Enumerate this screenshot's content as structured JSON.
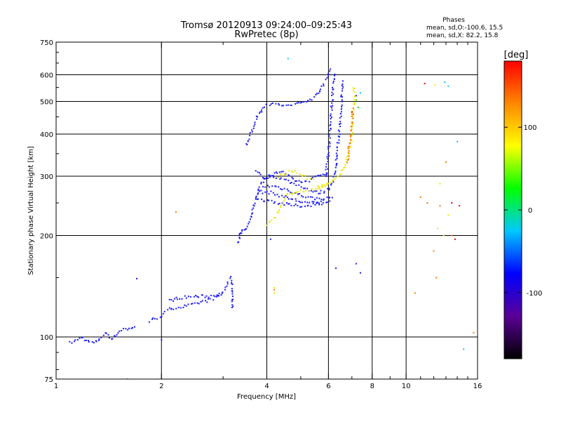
{
  "chart_data": {
    "type": "scatter",
    "title": "Tromsø 20120913 09:24:00–09:25:43",
    "subtitle": "RwPretec (8p)",
    "xlabel": "Frequency [MHz]",
    "ylabel": "Stationary phase Virtual Height [km]",
    "x_scale": "log",
    "y_scale": "log",
    "xlim": [
      1,
      16
    ],
    "ylim": [
      75,
      750
    ],
    "x_ticks": [
      1,
      2,
      4,
      6,
      8,
      10,
      16
    ],
    "x_tick_labels": [
      "1",
      "2",
      "4",
      "6",
      "8",
      "10",
      "16"
    ],
    "x_gridlines": [
      2,
      4,
      6,
      8,
      10
    ],
    "y_ticks": [
      75,
      100,
      200,
      300,
      400,
      500,
      600,
      750
    ],
    "y_tick_labels": [
      "75",
      "100",
      "200",
      "300",
      "400",
      "500",
      "600",
      "750"
    ],
    "y_gridlines": [
      100,
      200,
      300,
      400,
      500,
      600
    ],
    "grid": true,
    "phases_note": {
      "header": "Phases",
      "line1": "mean, sd,O:-100.6, 15.5",
      "line2": "mean, sd,X:  82.2, 15.8"
    },
    "colorbar": {
      "label": "[deg]",
      "range": [
        -180,
        180
      ],
      "ticks": [
        100,
        0,
        -100
      ],
      "tick_labels": [
        "100",
        "0",
        "-100"
      ],
      "colors": [
        "#000000",
        "#5a0096",
        "#0000ff",
        "#00c8ff",
        "#00ff00",
        "#ffff00",
        "#ff8800",
        "#ff0000"
      ]
    },
    "series": [
      {
        "phase": -100,
        "color": "#1a1aff",
        "segments": [
          [
            [
              1.1,
              96
            ],
            [
              1.15,
              98
            ],
            [
              1.18,
              100
            ],
            [
              1.23,
              97
            ],
            [
              1.28,
              96
            ],
            [
              1.32,
              98
            ],
            [
              1.36,
              101
            ],
            [
              1.4,
              103
            ],
            [
              1.42,
              100
            ],
            [
              1.45,
              99
            ],
            [
              1.48,
              101
            ],
            [
              1.52,
              104
            ],
            [
              1.55,
              106
            ],
            [
              1.6,
              105
            ],
            [
              1.65,
              107
            ],
            [
              1.7,
              108
            ]
          ],
          [
            [
              1.85,
              111
            ],
            [
              1.9,
              113
            ],
            [
              1.95,
              114
            ],
            [
              2.0,
              116
            ],
            [
              2.05,
              118
            ],
            [
              2.1,
              121
            ],
            [
              2.15,
              122
            ],
            [
              2.2,
              122
            ],
            [
              2.3,
              123
            ],
            [
              2.4,
              124
            ],
            [
              2.5,
              125
            ],
            [
              2.6,
              127
            ],
            [
              2.7,
              128
            ],
            [
              2.8,
              130
            ],
            [
              2.9,
              133
            ],
            [
              3.0,
              136
            ],
            [
              3.05,
              140
            ],
            [
              3.1,
              146
            ],
            [
              3.15,
              150
            ],
            [
              3.18,
              142
            ],
            [
              3.2,
              120
            ]
          ],
          [
            [
              2.1,
              128
            ],
            [
              2.2,
              130
            ],
            [
              2.3,
              131
            ],
            [
              2.5,
              132
            ],
            [
              2.7,
              132
            ],
            [
              2.9,
              133
            ],
            [
              3.0,
              135
            ]
          ],
          [
            [
              3.35,
              200
            ],
            [
              3.4,
              205
            ],
            [
              3.5,
              210
            ],
            [
              3.6,
              225
            ],
            [
              3.65,
              240
            ],
            [
              3.7,
              255
            ],
            [
              3.75,
              265
            ],
            [
              3.8,
              280
            ],
            [
              3.9,
              290
            ],
            [
              4.0,
              300
            ],
            [
              4.2,
              300
            ],
            [
              4.4,
              295
            ],
            [
              4.6,
              290
            ],
            [
              4.8,
              285
            ],
            [
              5.0,
              280
            ],
            [
              5.2,
              275
            ],
            [
              5.4,
              270
            ],
            [
              5.6,
              268
            ],
            [
              5.8,
              270
            ],
            [
              6.0,
              275
            ],
            [
              6.2,
              290
            ],
            [
              6.3,
              320
            ],
            [
              6.4,
              380
            ],
            [
              6.5,
              450
            ],
            [
              6.55,
              520
            ],
            [
              6.6,
              580
            ]
          ],
          [
            [
              3.9,
              280
            ],
            [
              4.2,
              280
            ],
            [
              4.5,
              275
            ],
            [
              4.8,
              268
            ],
            [
              5.1,
              262
            ],
            [
              5.4,
              258
            ],
            [
              5.7,
              257
            ],
            [
              6.0,
              258
            ],
            [
              6.2,
              262
            ]
          ],
          [
            [
              3.8,
              270
            ],
            [
              4.1,
              268
            ],
            [
              4.4,
              262
            ],
            [
              4.7,
              257
            ],
            [
              5.0,
              252
            ],
            [
              5.3,
              250
            ],
            [
              5.6,
              250
            ],
            [
              5.9,
              252
            ],
            [
              6.1,
              255
            ]
          ],
          [
            [
              3.75,
              255
            ],
            [
              4.0,
              255
            ],
            [
              4.3,
              250
            ],
            [
              4.6,
              247
            ],
            [
              4.9,
              245
            ],
            [
              5.2,
              245
            ],
            [
              5.5,
              248
            ],
            [
              5.8,
              250
            ]
          ],
          [
            [
              3.7,
              310
            ],
            [
              3.8,
              305
            ],
            [
              4.0,
              295
            ],
            [
              4.2,
              305
            ],
            [
              4.4,
              310
            ],
            [
              4.6,
              300
            ],
            [
              4.8,
              292
            ],
            [
              5.0,
              288
            ],
            [
              5.2,
              290
            ],
            [
              5.4,
              295
            ],
            [
              5.6,
              300
            ],
            [
              5.8,
              305
            ],
            [
              6.0,
              308
            ]
          ],
          [
            [
              3.5,
              370
            ],
            [
              3.6,
              400
            ],
            [
              3.7,
              430
            ],
            [
              3.8,
              460
            ],
            [
              3.9,
              480
            ],
            [
              4.0,
              490
            ],
            [
              4.3,
              490
            ],
            [
              4.6,
              485
            ],
            [
              4.8,
              490
            ],
            [
              5.0,
              495
            ],
            [
              5.2,
              500
            ],
            [
              5.4,
              510
            ],
            [
              5.6,
              530
            ],
            [
              5.8,
              560
            ],
            [
              6.0,
              600
            ],
            [
              6.1,
              630
            ]
          ],
          [
            [
              5.9,
              300
            ],
            [
              6.0,
              350
            ],
            [
              6.05,
              400
            ],
            [
              6.1,
              450
            ],
            [
              6.15,
              510
            ],
            [
              6.2,
              570
            ],
            [
              6.25,
              610
            ]
          ],
          [
            [
              3.3,
              190
            ],
            [
              3.35,
              198
            ],
            [
              3.4,
              210
            ]
          ]
        ],
        "points": [
          [
            1.7,
            149
          ],
          [
            2.0,
            98
          ],
          [
            4.1,
            195
          ],
          [
            7.2,
            165
          ],
          [
            7.4,
            155
          ],
          [
            6.3,
            160
          ],
          [
            7.2,
            520
          ]
        ]
      },
      {
        "phase": 82,
        "color": "#e8e800",
        "segments": [
          [
            [
              4.3,
              300
            ],
            [
              4.5,
              305
            ],
            [
              4.7,
              310
            ],
            [
              4.9,
              308
            ],
            [
              5.1,
              300
            ],
            [
              5.3,
              295
            ],
            [
              5.5,
              292
            ]
          ],
          [
            [
              4.0,
              215
            ],
            [
              4.1,
              220
            ],
            [
              4.2,
              225
            ],
            [
              4.3,
              235
            ],
            [
              4.4,
              245
            ],
            [
              4.5,
              255
            ],
            [
              4.6,
              265
            ],
            [
              4.8,
              270
            ],
            [
              5.0,
              272
            ],
            [
              5.2,
              270
            ],
            [
              5.5,
              275
            ],
            [
              6.0,
              285
            ],
            [
              6.4,
              300
            ],
            [
              6.7,
              320
            ],
            [
              6.9,
              360
            ],
            [
              7.0,
              400
            ],
            [
              7.05,
              450
            ],
            [
              7.1,
              500
            ],
            [
              7.1,
              560
            ]
          ],
          [
            [
              5.6,
              280
            ],
            [
              5.8,
              282
            ],
            [
              6.0,
              285
            ]
          ]
        ],
        "points": [
          [
            4.2,
            140
          ],
          [
            4.2,
            135
          ],
          [
            12.5,
            285
          ],
          [
            12.8,
            200
          ],
          [
            12.3,
            210
          ],
          [
            13.2,
            230
          ],
          [
            12.1,
            560
          ]
        ]
      },
      {
        "phase": 150,
        "color": "#ff7700",
        "segments": [
          [
            [
              6.8,
              330
            ],
            [
              6.9,
              380
            ],
            [
              7.0,
              430
            ],
            [
              7.05,
              480
            ]
          ]
        ],
        "points": [
          [
            4.2,
            138
          ],
          [
            2.2,
            235
          ],
          [
            11.0,
            260
          ],
          [
            11.5,
            250
          ],
          [
            12.0,
            180
          ],
          [
            12.2,
            150
          ],
          [
            13.0,
            330
          ],
          [
            13.5,
            200
          ],
          [
            15.6,
            103
          ],
          [
            10.6,
            135
          ],
          [
            12.5,
            245
          ]
        ]
      },
      {
        "phase": 175,
        "color": "#dd0000",
        "points": [
          [
            11.3,
            565
          ],
          [
            13.5,
            250
          ],
          [
            14.2,
            245
          ],
          [
            13.8,
            195
          ],
          [
            7.0,
            465
          ]
        ]
      },
      {
        "phase": -10,
        "color": "#00c8ff",
        "points": [
          [
            4.6,
            670
          ],
          [
            1.6,
            75
          ],
          [
            7.4,
            530
          ],
          [
            14.6,
            92
          ],
          [
            13.2,
            555
          ],
          [
            12.9,
            570
          ],
          [
            14.0,
            380
          ]
        ]
      },
      {
        "phase": 40,
        "color": "#22cc22",
        "points": [
          [
            7.2,
            505
          ],
          [
            7.3,
            480
          ]
        ]
      }
    ]
  }
}
